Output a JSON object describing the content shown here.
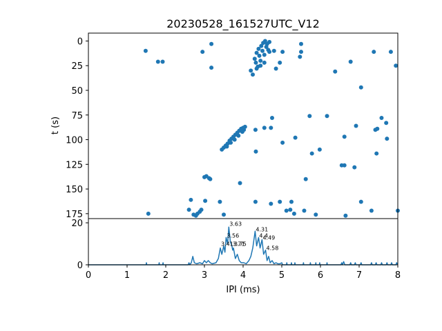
{
  "chart_data": [
    {
      "type": "scatter",
      "title": "20230528_161527UTC_V12",
      "xlabel": "",
      "ylabel": "t (s)",
      "xlim": [
        0,
        8
      ],
      "ylim": [
        180,
        -8
      ],
      "y_inverted": true,
      "yticks": [
        0,
        25,
        50,
        75,
        100,
        125,
        150,
        175
      ],
      "color": "#1f77b4",
      "points": [
        [
          1.48,
          10
        ],
        [
          1.8,
          21
        ],
        [
          1.92,
          21
        ],
        [
          2.95,
          11
        ],
        [
          3.18,
          3
        ],
        [
          3.18,
          27
        ],
        [
          4.2,
          30
        ],
        [
          4.25,
          34
        ],
        [
          4.3,
          18
        ],
        [
          4.33,
          22
        ],
        [
          4.35,
          12
        ],
        [
          4.38,
          26
        ],
        [
          4.4,
          8
        ],
        [
          4.42,
          15
        ],
        [
          4.45,
          20
        ],
        [
          4.47,
          5
        ],
        [
          4.5,
          10
        ],
        [
          4.52,
          2
        ],
        [
          4.55,
          14
        ],
        [
          4.57,
          0
        ],
        [
          4.6,
          6
        ],
        [
          4.62,
          3
        ],
        [
          4.65,
          9
        ],
        [
          4.68,
          1
        ],
        [
          4.35,
          28
        ],
        [
          4.45,
          25
        ],
        [
          4.55,
          22
        ],
        [
          4.68,
          11
        ],
        [
          4.8,
          10
        ],
        [
          4.85,
          28
        ],
        [
          4.95,
          22
        ],
        [
          5.02,
          11
        ],
        [
          5.5,
          3
        ],
        [
          5.5,
          11
        ],
        [
          5.47,
          16
        ],
        [
          6.38,
          31
        ],
        [
          6.78,
          21
        ],
        [
          7.05,
          47
        ],
        [
          7.38,
          11
        ],
        [
          7.82,
          11
        ],
        [
          7.95,
          25
        ],
        [
          5.72,
          76
        ],
        [
          6.17,
          76
        ],
        [
          6.92,
          86
        ],
        [
          7.58,
          78
        ],
        [
          7.7,
          83
        ],
        [
          4.32,
          90
        ],
        [
          4.55,
          88
        ],
        [
          4.72,
          88
        ],
        [
          4.75,
          78
        ],
        [
          5.35,
          98
        ],
        [
          6.62,
          97
        ],
        [
          7.42,
          90
        ],
        [
          7.47,
          89
        ],
        [
          7.72,
          99
        ],
        [
          5.02,
          103
        ],
        [
          3.45,
          110
        ],
        [
          3.5,
          108
        ],
        [
          3.55,
          106
        ],
        [
          3.6,
          104
        ],
        [
          3.65,
          101
        ],
        [
          3.7,
          99
        ],
        [
          3.75,
          97
        ],
        [
          3.8,
          95
        ],
        [
          3.85,
          93
        ],
        [
          3.9,
          91
        ],
        [
          3.95,
          89
        ],
        [
          4.0,
          88
        ],
        [
          4.05,
          87
        ],
        [
          3.58,
          107
        ],
        [
          3.68,
          103
        ],
        [
          3.78,
          100
        ],
        [
          3.88,
          96
        ],
        [
          3.98,
          92
        ],
        [
          4.02,
          90
        ],
        [
          4.33,
          112
        ],
        [
          5.78,
          114
        ],
        [
          5.98,
          110
        ],
        [
          7.45,
          114
        ],
        [
          6.62,
          126
        ],
        [
          6.88,
          128
        ],
        [
          3.0,
          138
        ],
        [
          3.05,
          137
        ],
        [
          3.12,
          139
        ],
        [
          3.15,
          140
        ],
        [
          3.92,
          144
        ],
        [
          5.62,
          140
        ],
        [
          6.55,
          126
        ],
        [
          1.55,
          175
        ],
        [
          2.6,
          171
        ],
        [
          2.65,
          161
        ],
        [
          2.72,
          176
        ],
        [
          2.78,
          177
        ],
        [
          2.82,
          175
        ],
        [
          2.88,
          173
        ],
        [
          2.92,
          171
        ],
        [
          3.02,
          162
        ],
        [
          3.4,
          163
        ],
        [
          3.5,
          176
        ],
        [
          4.32,
          163
        ],
        [
          4.72,
          165
        ],
        [
          4.95,
          163
        ],
        [
          5.12,
          172
        ],
        [
          5.22,
          171
        ],
        [
          5.25,
          163
        ],
        [
          5.32,
          175
        ],
        [
          5.58,
          172
        ],
        [
          5.88,
          176
        ],
        [
          6.65,
          177
        ],
        [
          7.05,
          163
        ],
        [
          7.32,
          172
        ],
        [
          8.0,
          172
        ]
      ]
    },
    {
      "type": "line",
      "xlabel": "IPI (ms)",
      "ylabel": "",
      "xlim": [
        0,
        8
      ],
      "ylim": [
        0,
        22
      ],
      "xticks": [
        0,
        1,
        2,
        3,
        4,
        5,
        6,
        7,
        8
      ],
      "yticks": [
        0,
        20
      ],
      "color": "#1f77b4",
      "peaks": [
        {
          "x": 3.41,
          "y": 9,
          "label": "3.41"
        },
        {
          "x": 3.56,
          "y": 13,
          "label": "3.56"
        },
        {
          "x": 3.63,
          "y": 18.5,
          "label": "3.63"
        },
        {
          "x": 3.71,
          "y": 9,
          "label": "3.71"
        },
        {
          "x": 3.75,
          "y": 9,
          "label": "3.75"
        },
        {
          "x": 4.31,
          "y": 16,
          "label": "4.31"
        },
        {
          "x": 4.4,
          "y": 13,
          "label": "4.4"
        },
        {
          "x": 4.49,
          "y": 12,
          "label": "4.49"
        },
        {
          "x": 4.58,
          "y": 7,
          "label": "4.58"
        }
      ],
      "curve": [
        [
          0,
          0
        ],
        [
          1.49,
          0
        ],
        [
          1.5,
          1
        ],
        [
          1.51,
          0
        ],
        [
          1.82,
          0
        ],
        [
          1.83,
          1
        ],
        [
          1.84,
          0
        ],
        [
          1.92,
          0
        ],
        [
          1.93,
          1
        ],
        [
          1.94,
          0
        ],
        [
          2.58,
          0
        ],
        [
          2.6,
          1
        ],
        [
          2.62,
          0
        ],
        [
          2.66,
          1
        ],
        [
          2.7,
          4
        ],
        [
          2.74,
          1
        ],
        [
          2.8,
          0.5
        ],
        [
          2.88,
          1
        ],
        [
          2.95,
          0.5
        ],
        [
          3.0,
          2
        ],
        [
          3.05,
          1
        ],
        [
          3.1,
          2
        ],
        [
          3.15,
          1
        ],
        [
          3.2,
          0.5
        ],
        [
          3.3,
          1
        ],
        [
          3.36,
          3
        ],
        [
          3.41,
          8
        ],
        [
          3.45,
          5
        ],
        [
          3.5,
          9
        ],
        [
          3.53,
          6
        ],
        [
          3.56,
          13
        ],
        [
          3.6,
          10
        ],
        [
          3.63,
          18
        ],
        [
          3.67,
          11
        ],
        [
          3.71,
          9
        ],
        [
          3.73,
          7
        ],
        [
          3.75,
          8
        ],
        [
          3.8,
          3
        ],
        [
          3.85,
          5
        ],
        [
          3.9,
          2
        ],
        [
          3.95,
          1
        ],
        [
          4.02,
          1
        ],
        [
          4.08,
          0.5
        ],
        [
          4.15,
          2
        ],
        [
          4.2,
          4
        ],
        [
          4.25,
          8
        ],
        [
          4.31,
          16
        ],
        [
          4.35,
          9
        ],
        [
          4.4,
          13
        ],
        [
          4.44,
          8
        ],
        [
          4.49,
          12
        ],
        [
          4.53,
          5
        ],
        [
          4.58,
          7
        ],
        [
          4.62,
          2
        ],
        [
          4.66,
          4
        ],
        [
          4.7,
          1
        ],
        [
          4.75,
          2
        ],
        [
          4.8,
          0.5
        ],
        [
          4.85,
          1
        ],
        [
          4.9,
          0.5
        ],
        [
          4.95,
          0.5
        ],
        [
          5.0,
          1
        ],
        [
          5.02,
          0
        ],
        [
          5.12,
          0
        ],
        [
          5.13,
          1
        ],
        [
          5.14,
          0
        ],
        [
          5.24,
          0
        ],
        [
          5.25,
          1
        ],
        [
          5.26,
          0
        ],
        [
          5.33,
          0
        ],
        [
          5.34,
          1
        ],
        [
          5.35,
          0
        ],
        [
          5.55,
          0
        ],
        [
          5.56,
          1
        ],
        [
          5.57,
          0
        ],
        [
          5.73,
          0
        ],
        [
          5.74,
          1
        ],
        [
          5.75,
          0
        ],
        [
          5.87,
          0
        ],
        [
          5.88,
          1
        ],
        [
          5.89,
          0
        ],
        [
          5.97,
          0
        ],
        [
          5.98,
          1
        ],
        [
          5.99,
          0
        ],
        [
          6.16,
          0
        ],
        [
          6.17,
          1
        ],
        [
          6.18,
          0
        ],
        [
          6.53,
          0
        ],
        [
          6.55,
          1
        ],
        [
          6.57,
          0
        ],
        [
          6.6,
          1.5
        ],
        [
          6.63,
          0
        ],
        [
          6.76,
          0
        ],
        [
          6.78,
          1
        ],
        [
          6.8,
          0
        ],
        [
          6.88,
          0
        ],
        [
          6.9,
          1
        ],
        [
          6.92,
          0
        ],
        [
          7.03,
          0
        ],
        [
          7.05,
          1
        ],
        [
          7.07,
          0
        ],
        [
          7.3,
          0
        ],
        [
          7.32,
          1
        ],
        [
          7.34,
          0
        ],
        [
          7.42,
          0
        ],
        [
          7.44,
          1
        ],
        [
          7.46,
          0
        ],
        [
          7.56,
          0
        ],
        [
          7.58,
          1
        ],
        [
          7.6,
          0
        ],
        [
          7.7,
          0
        ],
        [
          7.72,
          1
        ],
        [
          7.74,
          0
        ],
        [
          7.82,
          0
        ],
        [
          7.84,
          1
        ],
        [
          7.86,
          0
        ],
        [
          7.95,
          0
        ],
        [
          7.97,
          1
        ],
        [
          8.0,
          0
        ]
      ]
    }
  ]
}
